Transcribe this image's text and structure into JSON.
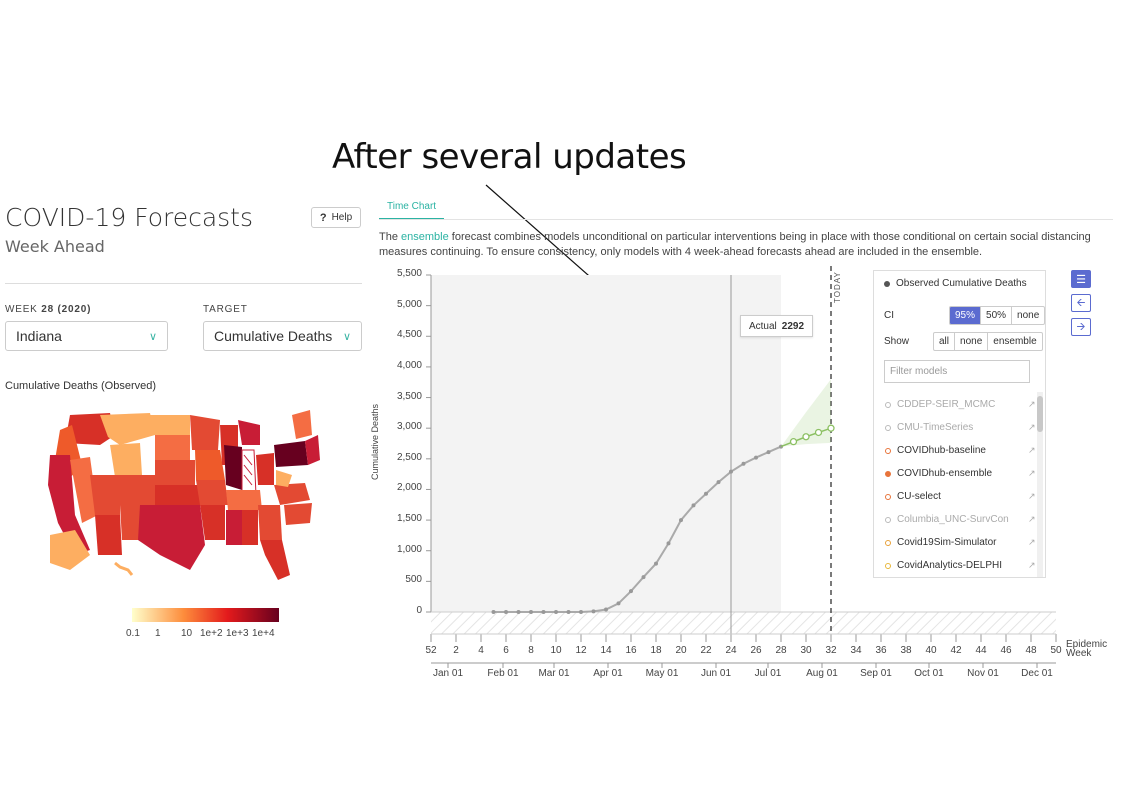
{
  "annotation": "After several updates",
  "sidebar": {
    "title": "COVID-19 Forecasts",
    "subtitle": "Week Ahead",
    "help_label": "Help",
    "week_label": "WEEK",
    "week_value": "28 (2020)",
    "target_label": "TARGET",
    "region_value": "Indiana",
    "target_value": "Cumulative Deaths",
    "map_title": "Cumulative Deaths (Observed)",
    "legend_ticks": [
      "0.1",
      "1",
      "10",
      "1e+2",
      "1e+3",
      "1e+4"
    ]
  },
  "tabs": [
    {
      "label": "Time Chart"
    }
  ],
  "description": {
    "pre": "The ",
    "link": "ensemble",
    "post": " forecast combines models unconditional on particular interventions being in place with those conditional on certain social distancing measures continuing. To ensure consistency, only models with 4 week-ahead forecasts ahead are included in the ensemble."
  },
  "tooltip": {
    "label": "Actual",
    "value": "2292"
  },
  "today_label": "TODAY",
  "panel": {
    "observed_label": "Observed Cumulative Deaths",
    "ci_label": "CI",
    "ci_options": [
      "95%",
      "50%",
      "none"
    ],
    "ci_selected": "95%",
    "show_label": "Show",
    "show_options": [
      "all",
      "none",
      "ensemble"
    ],
    "filter_placeholder": "Filter models",
    "models": [
      {
        "name": "CDDEP-SEIR_MCMC",
        "color": "#bbbbbb",
        "filled": false,
        "active": false
      },
      {
        "name": "CMU-TimeSeries",
        "color": "#bbbbbb",
        "filled": false,
        "active": false
      },
      {
        "name": "COVIDhub-baseline",
        "color": "#e8743b",
        "filled": false,
        "active": true
      },
      {
        "name": "COVIDhub-ensemble",
        "color": "#e8743b",
        "filled": true,
        "active": true
      },
      {
        "name": "CU-select",
        "color": "#e8743b",
        "filled": false,
        "active": true
      },
      {
        "name": "Columbia_UNC-SurvCon",
        "color": "#bbbbbb",
        "filled": false,
        "active": false
      },
      {
        "name": "Covid19Sim-Simulator",
        "color": "#e8a23b",
        "filled": false,
        "active": true
      },
      {
        "name": "CovidAnalytics-DELPHI",
        "color": "#e8b83b",
        "filled": false,
        "active": true
      }
    ]
  },
  "chart_data": {
    "type": "line",
    "ylabel": "Cumulative Deaths",
    "xlabel": "Epidemic Week",
    "ylim": [
      0,
      5500
    ],
    "y_ticks": [
      "0",
      "500",
      "1,000",
      "1,500",
      "2,000",
      "2,500",
      "3,000",
      "3,500",
      "4,000",
      "4,500",
      "5,000",
      "5,500"
    ],
    "x_week_ticks": [
      "52",
      "2",
      "4",
      "6",
      "8",
      "10",
      "12",
      "14",
      "16",
      "18",
      "20",
      "22",
      "24",
      "26",
      "28",
      "30",
      "32",
      "34",
      "36",
      "38",
      "40",
      "42",
      "44",
      "46",
      "48",
      "50"
    ],
    "x_month_ticks": [
      "Jan 01",
      "Feb 01",
      "Mar 01",
      "Apr 01",
      "May 01",
      "Jun 01",
      "Jul 01",
      "Aug 01",
      "Sep 01",
      "Oct 01",
      "Nov 01",
      "Dec 01"
    ],
    "today_week": 32,
    "shaded_range_weeks": [
      52,
      28
    ],
    "vertical_line_week": 24,
    "series": [
      {
        "values_x_week": [
          5,
          6,
          7,
          8,
          9,
          10,
          11,
          12,
          13,
          14,
          15,
          16,
          17,
          18,
          19,
          20,
          21,
          22,
          23,
          24,
          25,
          26,
          27,
          28
        ],
        "values_y": [
          0,
          0,
          0,
          0,
          0,
          0,
          0,
          0,
          10,
          40,
          140,
          340,
          570,
          790,
          1120,
          1500,
          1740,
          1930,
          2120,
          2290,
          2420,
          2520,
          2610,
          2700
        ],
        "color": "#aaaaaa"
      },
      {
        "values_x_week": [
          29,
          30,
          31,
          32
        ],
        "values_y": [
          2780,
          2860,
          2930,
          3000
        ],
        "color": "#8cc063"
      }
    ]
  },
  "colors": {
    "accent": "#2bb3a3",
    "primary": "#5b6bd0",
    "forecast": "#8cc063",
    "observed": "#aaaaaa"
  }
}
